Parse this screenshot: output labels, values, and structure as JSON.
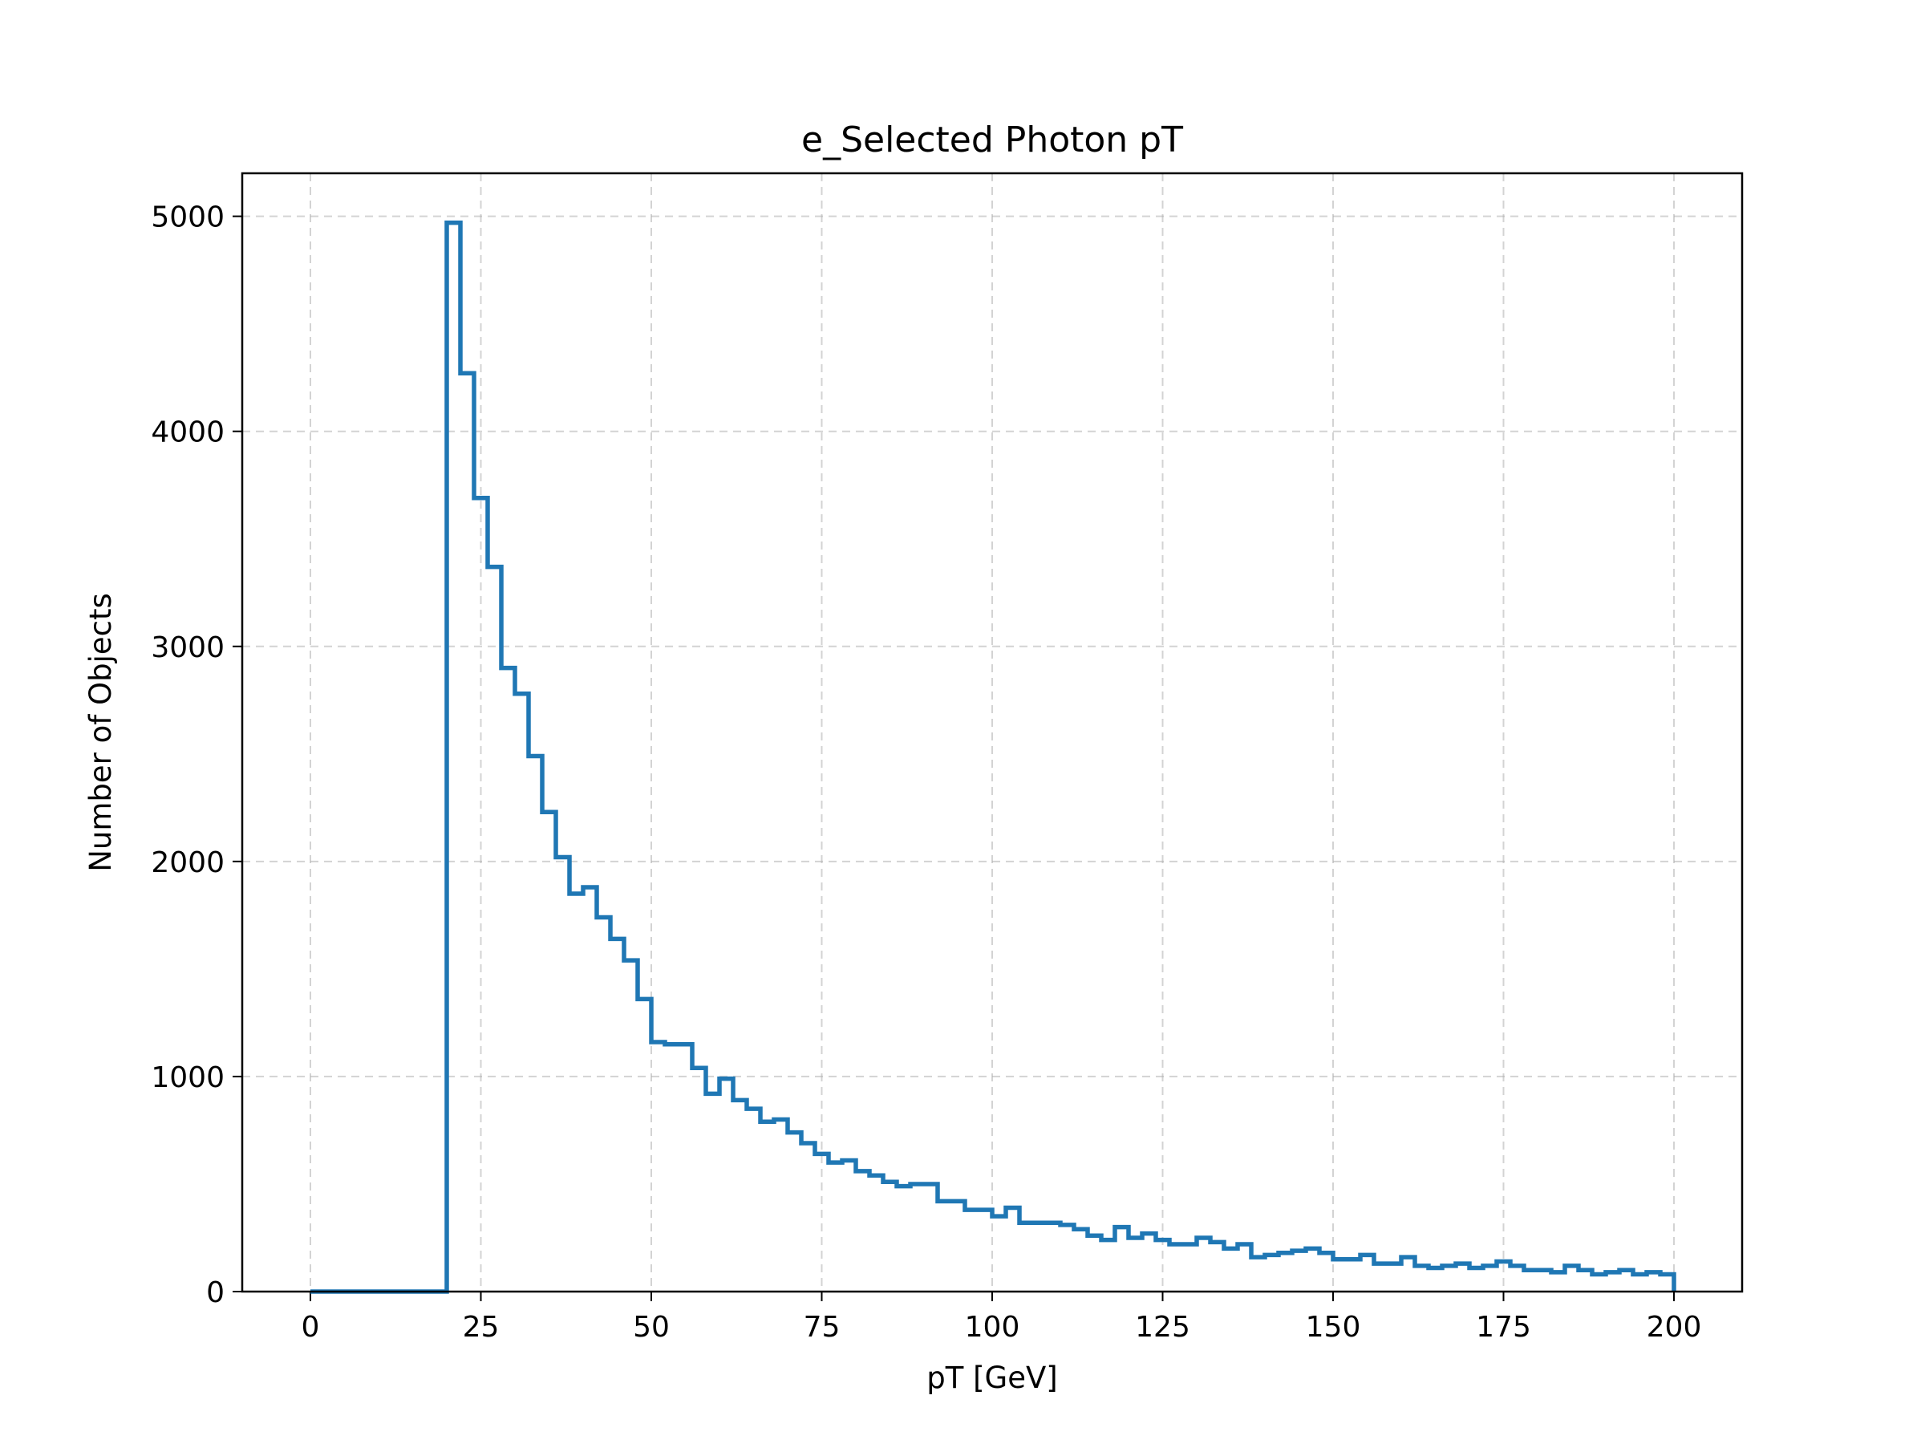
{
  "chart_data": {
    "type": "histogram",
    "title": "e_Selected Photon pT",
    "xlabel": "pT [GeV]",
    "ylabel": "Number of Objects",
    "xlim": [
      -10,
      210
    ],
    "ylim": [
      0,
      5200
    ],
    "xticks": [
      0,
      25,
      50,
      75,
      100,
      125,
      150,
      175,
      200
    ],
    "yticks": [
      0,
      1000,
      2000,
      3000,
      4000,
      5000
    ],
    "grid": true,
    "line_color": "#1f77b4",
    "bin_width": 2,
    "bin_edges_start": 0,
    "bin_edges_end": 200,
    "values": [
      0,
      0,
      0,
      0,
      0,
      0,
      0,
      0,
      0,
      0,
      4970,
      4270,
      3690,
      3370,
      2900,
      2780,
      2490,
      2230,
      2020,
      1850,
      1880,
      1740,
      1640,
      1540,
      1360,
      1160,
      1150,
      1150,
      1040,
      920,
      990,
      890,
      850,
      790,
      800,
      740,
      690,
      640,
      600,
      610,
      560,
      540,
      510,
      490,
      500,
      500,
      420,
      420,
      380,
      380,
      350,
      390,
      320,
      320,
      320,
      310,
      290,
      260,
      240,
      300,
      250,
      270,
      240,
      220,
      220,
      250,
      230,
      200,
      220,
      160,
      170,
      180,
      190,
      200,
      180,
      150,
      150,
      170,
      130,
      130,
      160,
      120,
      110,
      120,
      130,
      110,
      120,
      140,
      120,
      100,
      100,
      90,
      120,
      100,
      80,
      90,
      100,
      80,
      90,
      80
    ]
  }
}
